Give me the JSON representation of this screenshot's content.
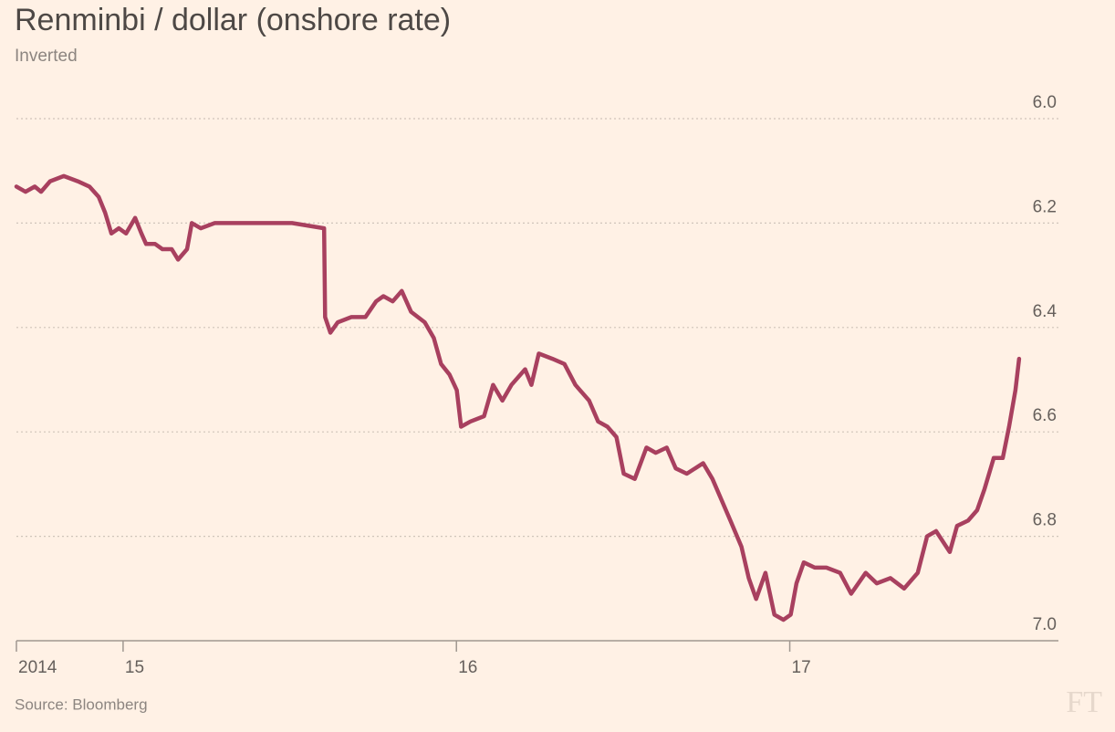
{
  "chart_data": {
    "type": "line",
    "title": "Renminbi / dollar (onshore rate)",
    "subtitle": "Inverted",
    "source": "Source: Bloomberg",
    "logo": "FT",
    "color": "#a8405f",
    "y_inverted": true,
    "grid": true,
    "xlim": [
      2014.68,
      2017.806
    ],
    "xticks": [
      {
        "value": 2014.68,
        "label": "2014"
      },
      {
        "value": 2015,
        "label": "15"
      },
      {
        "value": 2016,
        "label": "16"
      },
      {
        "value": 2017,
        "label": "17"
      }
    ],
    "ylim": [
      6,
      7
    ],
    "yticks": [
      {
        "value": 6,
        "label": "6.0"
      },
      6.2,
      6.4,
      6.6,
      6.8,
      {
        "value": 7,
        "label": "7.0"
      }
    ],
    "x": [
      2014.68,
      2014.707,
      2014.735,
      2014.754,
      2014.781,
      2014.822,
      2014.864,
      2014.899,
      2014.927,
      2014.946,
      2014.965,
      2014.987,
      2015.009,
      2015.036,
      2015.055,
      2015.069,
      2015.096,
      2015.118,
      2015.146,
      2015.165,
      2015.192,
      2015.206,
      2015.233,
      2015.275,
      2015.316,
      2015.398,
      2015.507,
      2015.603,
      2015.606,
      2015.622,
      2015.644,
      2015.685,
      2015.727,
      2015.759,
      2015.781,
      2015.809,
      2015.836,
      2015.864,
      2015.905,
      2015.932,
      2015.954,
      2015.979,
      2016.001,
      2016.014,
      2016.042,
      2016.083,
      2016.11,
      2016.138,
      2016.165,
      2016.206,
      2016.225,
      2016.247,
      2016.288,
      2016.324,
      2016.357,
      2016.398,
      2016.425,
      2016.453,
      2016.48,
      2016.502,
      2016.535,
      2016.57,
      2016.598,
      2016.631,
      2016.658,
      2016.691,
      2016.74,
      2016.768,
      2016.795,
      2016.822,
      2016.855,
      2016.877,
      2016.899,
      2016.927,
      2016.954,
      2016.981,
      2017.003,
      2017.02,
      2017.042,
      2017.075,
      2017.11,
      2017.151,
      2017.184,
      2017.228,
      2017.261,
      2017.302,
      2017.343,
      2017.384,
      2017.412,
      2017.439,
      2017.48,
      2017.502,
      2017.535,
      2017.562,
      2017.584,
      2017.612,
      2017.639,
      2017.658,
      2017.677,
      2017.688
    ],
    "values": [
      6.13,
      6.14,
      6.13,
      6.14,
      6.12,
      6.11,
      6.12,
      6.13,
      6.15,
      6.18,
      6.22,
      6.21,
      6.22,
      6.19,
      6.22,
      6.24,
      6.24,
      6.25,
      6.25,
      6.27,
      6.25,
      6.2,
      6.21,
      6.2,
      6.2,
      6.2,
      6.2,
      6.21,
      6.38,
      6.41,
      6.39,
      6.38,
      6.38,
      6.35,
      6.34,
      6.35,
      6.33,
      6.37,
      6.39,
      6.42,
      6.47,
      6.49,
      6.52,
      6.59,
      6.58,
      6.57,
      6.51,
      6.54,
      6.51,
      6.48,
      6.51,
      6.45,
      6.46,
      6.47,
      6.51,
      6.54,
      6.58,
      6.59,
      6.61,
      6.68,
      6.69,
      6.63,
      6.64,
      6.63,
      6.67,
      6.68,
      6.66,
      6.69,
      6.73,
      6.77,
      6.82,
      6.88,
      6.92,
      6.87,
      6.95,
      6.96,
      6.95,
      6.89,
      6.85,
      6.86,
      6.86,
      6.87,
      6.91,
      6.87,
      6.89,
      6.88,
      6.9,
      6.87,
      6.8,
      6.79,
      6.83,
      6.78,
      6.77,
      6.75,
      6.71,
      6.65,
      6.65,
      6.59,
      6.52,
      6.46
    ]
  }
}
